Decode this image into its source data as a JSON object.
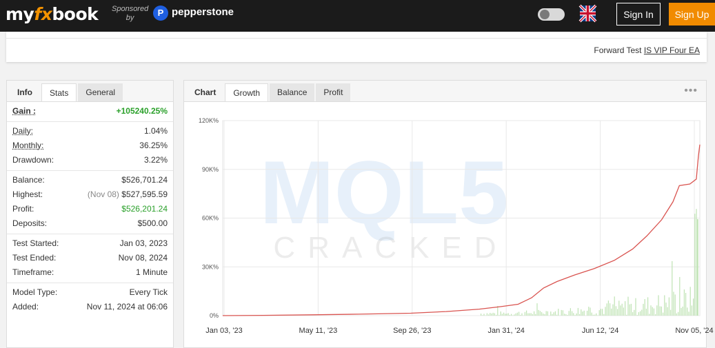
{
  "header": {
    "logo_left": "my",
    "logo_mid": "fx",
    "logo_right": "book",
    "sponsored_line1": "Sponsored",
    "sponsored_line2": "by",
    "sponsor_name": "pepperstone",
    "signin_label": "Sign In",
    "signup_label": "Sign Up"
  },
  "forward_test": {
    "prefix": "Forward Test",
    "link": "IS VIP Four EA"
  },
  "left_panel": {
    "tabs": [
      "Info",
      "Stats",
      "General"
    ],
    "active_tab": "Stats",
    "gain": {
      "label": "Gain :",
      "value": "+105240.25%"
    },
    "daily": {
      "label": "Daily:",
      "value": "1.04%"
    },
    "monthly": {
      "label": "Monthly:",
      "value": "36.25%"
    },
    "drawdown": {
      "label": "Drawdown:",
      "value": "3.22%"
    },
    "balance": {
      "label": "Balance:",
      "value": "$526,701.24"
    },
    "highest": {
      "label": "Highest:",
      "note": "(Nov 08)",
      "value": "$527,595.59"
    },
    "profit": {
      "label": "Profit:",
      "value": "$526,201.24"
    },
    "deposits": {
      "label": "Deposits:",
      "value": "$500.00"
    },
    "test_started": {
      "label": "Test Started:",
      "value": "Jan 03, 2023"
    },
    "test_ended": {
      "label": "Test Ended:",
      "value": "Nov 08, 2024"
    },
    "timeframe": {
      "label": "Timeframe:",
      "value": "1 Minute"
    },
    "model_type": {
      "label": "Model Type:",
      "value": "Every Tick"
    },
    "added": {
      "label": "Added:",
      "value": "Nov 11, 2024 at 06:06"
    }
  },
  "chart_panel": {
    "tabs": [
      "Chart",
      "Growth",
      "Balance",
      "Profit"
    ],
    "active_tab": "Growth",
    "menu_icon": "more-dots-icon"
  },
  "watermark": {
    "top": "MQL5",
    "bottom": "CRACKED"
  },
  "colors": {
    "line": "#d9534f",
    "bars": "#bfe3b4",
    "green": "#2aa02a",
    "accent": "#f18b00"
  },
  "chart_data": {
    "type": "line",
    "yticks": [
      "0%",
      "30K%",
      "60K%",
      "90K%",
      "120K%"
    ],
    "ylim": [
      0,
      120000
    ],
    "xticks": [
      "Jan 03, '23",
      "May 11, '23",
      "Sep 26, '23",
      "Jan 31, '24",
      "Jun 12, '24",
      "Nov 05, '24"
    ],
    "grid": true,
    "series": [
      {
        "values": [
          [
            "2023-01-03",
            0
          ],
          [
            "2023-03-01",
            150
          ],
          [
            "2023-05-11",
            500
          ],
          [
            "2023-07-15",
            900
          ],
          [
            "2023-09-26",
            1500
          ],
          [
            "2023-11-15",
            2500
          ],
          [
            "2024-01-01",
            4000
          ],
          [
            "2024-01-31",
            5500
          ],
          [
            "2024-02-25",
            7000
          ],
          [
            "2024-03-15",
            11000
          ],
          [
            "2024-04-01",
            17000
          ],
          [
            "2024-04-20",
            21000
          ],
          [
            "2024-05-15",
            25000
          ],
          [
            "2024-06-12",
            29000
          ],
          [
            "2024-07-10",
            34000
          ],
          [
            "2024-08-05",
            41000
          ],
          [
            "2024-08-25",
            49000
          ],
          [
            "2024-09-15",
            59000
          ],
          [
            "2024-10-01",
            70000
          ],
          [
            "2024-10-10",
            80000
          ],
          [
            "2024-10-25",
            81000
          ],
          [
            "2024-11-03",
            84000
          ],
          [
            "2024-11-06",
            98000
          ],
          [
            "2024-11-08",
            105240
          ]
        ]
      }
    ]
  }
}
